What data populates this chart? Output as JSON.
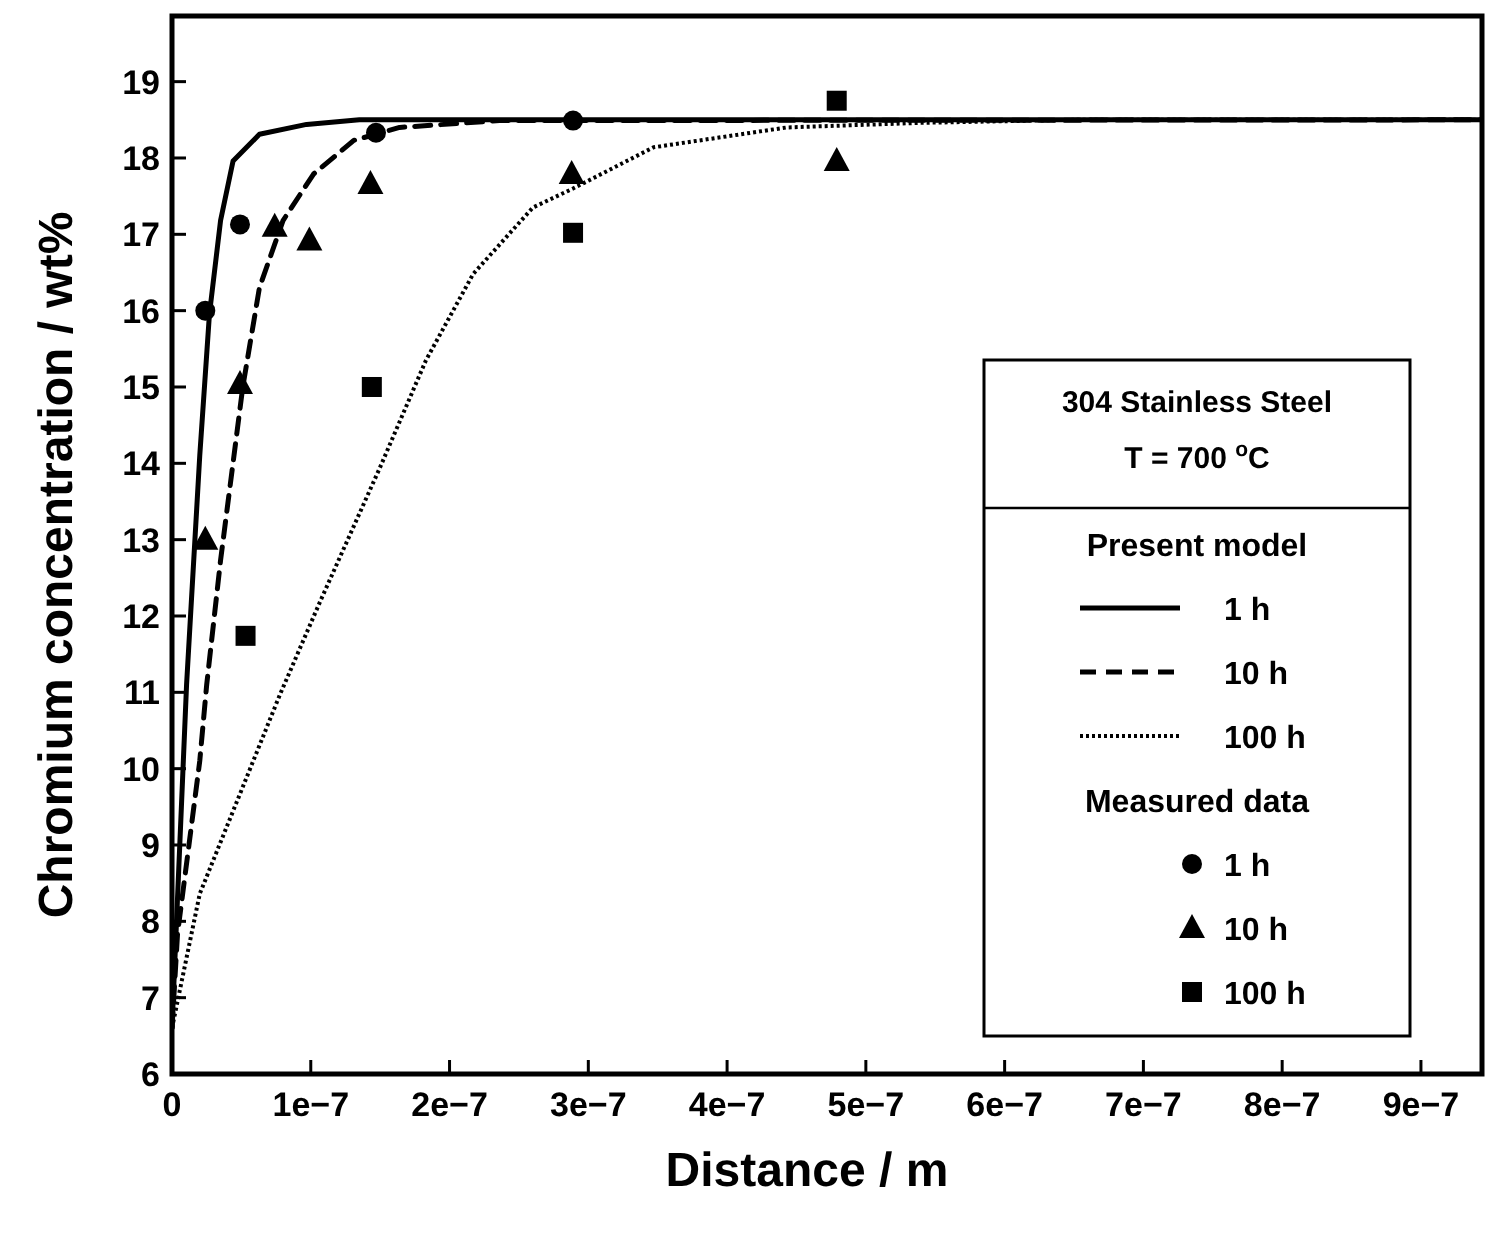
{
  "chart_data": {
    "type": "line",
    "xlabel": "Distance / m",
    "ylabel": "Chromium concentration / wt%",
    "legend_title": "304 Stainless Steel",
    "annotations": [
      "T = 700 $^{o}$C",
      "Present model",
      "Measured data"
    ],
    "xlim": [
      0,
      9.44e-07
    ],
    "xticks": [
      0,
      {
        "value": 1e-07,
        "label": "1e−7"
      },
      {
        "value": 2e-07,
        "label": "2e−7"
      },
      {
        "value": 3e-07,
        "label": "3e−7"
      },
      {
        "value": 4e-07,
        "label": "4e−7"
      },
      {
        "value": 5e-07,
        "label": "5e−7"
      },
      {
        "value": 6e-07,
        "label": "6e−7"
      },
      {
        "value": 7e-07,
        "label": "7e−7"
      },
      {
        "value": 8e-07,
        "label": "8e−7"
      },
      {
        "value": 9e-07,
        "label": "9e−7"
      }
    ],
    "ylim": [
      6,
      19.86
    ],
    "yticks": [
      6,
      7,
      8,
      9,
      10,
      11,
      12,
      13,
      14,
      15,
      16,
      17,
      18,
      19
    ],
    "grid": false,
    "legend": "right",
    "series": [
      {
        "name": "1 h",
        "line_style": "solid",
        "color": "#000000",
        "x": [
          0,
          1.05e-08,
          2e-08,
          2.7e-08,
          3.5e-08,
          4.4e-08,
          6.3e-08,
          9.7e-08,
          1.35e-07,
          9.44e-07
        ],
        "values": [
          6.6,
          11.1,
          14.1,
          15.96,
          17.18,
          17.96,
          18.31,
          18.44,
          18.5,
          18.5
        ]
      },
      {
        "name": "10 h",
        "line_style": "dashed",
        "color": "#000000",
        "x": [
          0,
          4e-09,
          2e-08,
          2.5e-08,
          3.5e-08,
          5.1e-08,
          6.3e-08,
          8e-08,
          1.02e-07,
          1.31e-07,
          1.64e-07,
          2.36e-07,
          9.44e-07
        ],
        "values": [
          6.6,
          7.84,
          10.1,
          11.1,
          12.73,
          15.0,
          16.3,
          17.18,
          17.79,
          18.23,
          18.4,
          18.49,
          18.5
        ]
      },
      {
        "name": "100 h",
        "line_style": "dotted",
        "color": "#000000",
        "x": [
          0,
          2e-08,
          4.9e-08,
          7.8e-08,
          1.07e-07,
          1.5e-07,
          1.83e-07,
          2.17e-07,
          2.6e-07,
          2.89e-07,
          3.47e-07,
          4.43e-07,
          5.39e-07,
          6.5e-07,
          9.44e-07
        ],
        "values": [
          6.6,
          8.36,
          9.67,
          10.98,
          12.2,
          13.95,
          15.35,
          16.48,
          17.35,
          17.6,
          18.14,
          18.4,
          18.46,
          18.5,
          18.5
        ]
      },
      {
        "name": "1 h",
        "type": "scatter",
        "marker": "circle",
        "color": "#000000",
        "x": [
          2.4e-08,
          4.9e-08,
          1.47e-07,
          2.89e-07
        ],
        "values": [
          16.0,
          17.13,
          18.33,
          18.49
        ]
      },
      {
        "name": "10 h",
        "type": "scatter",
        "marker": "triangle",
        "color": "#000000",
        "x": [
          2.4e-08,
          4.9e-08,
          7.4e-08,
          9.9e-08,
          1.43e-07,
          2.88e-07,
          4.79e-07
        ],
        "values": [
          13.0,
          15.04,
          17.1,
          16.92,
          17.66,
          17.79,
          17.96
        ]
      },
      {
        "name": "100 h",
        "type": "scatter",
        "marker": "square",
        "color": "#000000",
        "x": [
          5.3e-08,
          1.44e-07,
          2.89e-07,
          4.79e-07
        ],
        "values": [
          11.74,
          15.0,
          17.02,
          18.75
        ]
      }
    ]
  }
}
